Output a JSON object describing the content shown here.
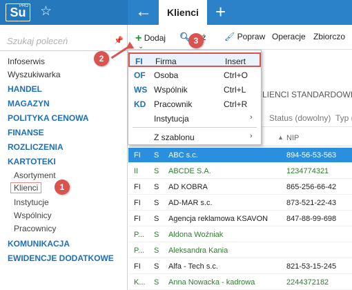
{
  "app": {
    "logo_text": "Su",
    "logo_sup": "PRO",
    "tab_active": "Klienci"
  },
  "sidebar": {
    "search_placeholder": "Szukaj poleceń",
    "items": [
      {
        "label": "Infoserwis",
        "type": "item"
      },
      {
        "label": "Wyszukiwarka",
        "type": "item"
      },
      {
        "label": "HANDEL",
        "type": "section"
      },
      {
        "label": "MAGAZYN",
        "type": "section"
      },
      {
        "label": "POLITYKA CENOWA",
        "type": "section"
      },
      {
        "label": "FINANSE",
        "type": "section"
      },
      {
        "label": "ROZLICZENIA",
        "type": "section"
      },
      {
        "label": "KARTOTEKI",
        "type": "section"
      },
      {
        "label": "Asortyment",
        "type": "sub"
      },
      {
        "label": "Klienci",
        "type": "sub"
      },
      {
        "label": "Instytucje",
        "type": "sub"
      },
      {
        "label": "Wspólnicy",
        "type": "sub"
      },
      {
        "label": "Pracownicy",
        "type": "sub"
      },
      {
        "label": "KOMUNIKACJA",
        "type": "section"
      },
      {
        "label": "EWIDENCJE DODATKOWE",
        "type": "section"
      }
    ]
  },
  "toolbar": {
    "add_label": "Dodaj",
    "show_label": "każ",
    "edit_label": "Popraw",
    "ops_label": "Operacje",
    "set_label": "Zbiorczo"
  },
  "list": {
    "title": "LIENCI STANDARDOWI",
    "filter_status": "Status (dowolny)",
    "filter_typ": "Typ (",
    "col_nip": "NIP",
    "rows": [
      {
        "c1": "FI",
        "c2": "S",
        "name": "ABC s.c.",
        "nip": "894-56-53-563",
        "style": "selected"
      },
      {
        "c1": "II",
        "c2": "S",
        "name": "ABCDE S.A.",
        "nip": "1234774321",
        "style": "green"
      },
      {
        "c1": "FI",
        "c2": "S",
        "name": "AD KOBRA",
        "nip": "865-256-66-42",
        "style": ""
      },
      {
        "c1": "FI",
        "c2": "S",
        "name": "AD-MAR s.c.",
        "nip": "873-521-22-43",
        "style": ""
      },
      {
        "c1": "FI",
        "c2": "S",
        "name": "Agencja reklamowa KSAVON",
        "nip": "847-88-99-698",
        "style": ""
      },
      {
        "c1": "P...",
        "c2": "S",
        "name": "Aldona Woźniak",
        "nip": "",
        "style": "green"
      },
      {
        "c1": "P...",
        "c2": "S",
        "name": "Aleksandra Kania",
        "nip": "",
        "style": "green"
      },
      {
        "c1": "FI",
        "c2": "S",
        "name": "Alfa - Tech s.c.",
        "nip": "821-53-15-245",
        "style": ""
      },
      {
        "c1": "K...",
        "c2": "S",
        "name": "Anna Nowacka - kadrowa",
        "nip": "2244372182",
        "style": "green"
      }
    ]
  },
  "dropdown": {
    "items": [
      {
        "badge": "FI",
        "label": "Firma",
        "key": "Insert"
      },
      {
        "badge": "OF",
        "label": "Osoba",
        "key": "Ctrl+O"
      },
      {
        "badge": "WS",
        "label": "Wspólnik",
        "key": "Ctrl+L"
      },
      {
        "badge": "KD",
        "label": "Pracownik",
        "key": "Ctrl+R"
      },
      {
        "badge": "",
        "label": "Instytucja",
        "key": ""
      },
      {
        "badge": "",
        "label": "Z szablonu",
        "key": ""
      }
    ]
  },
  "callouts": [
    "1",
    "2",
    "3"
  ],
  "colors": {
    "topbar": "#2b82c9",
    "accent": "#1e6fb8",
    "callout": "#d9534f",
    "selected_row": "#2b8fe0",
    "green_text": "#2e7d2e"
  }
}
